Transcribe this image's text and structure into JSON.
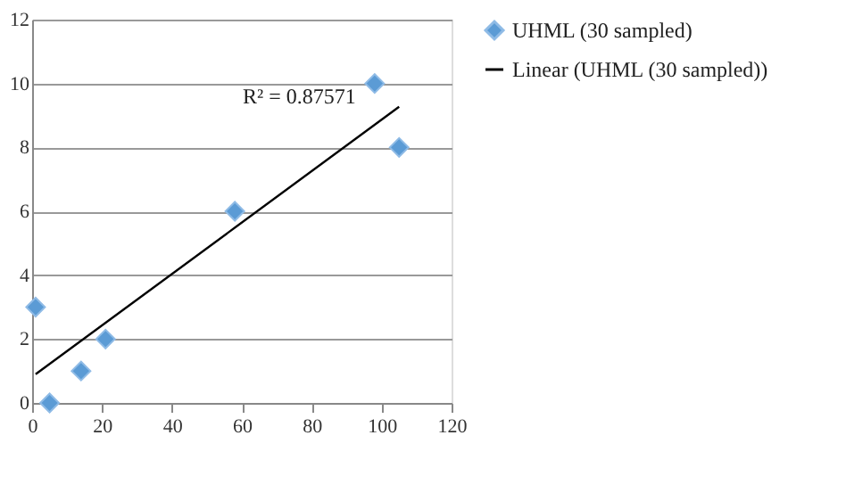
{
  "chart_data": {
    "type": "scatter",
    "x": [
      1,
      5,
      14,
      21,
      58,
      98,
      105
    ],
    "series": [
      {
        "name": "UHML (30 sampled)",
        "color": "#5b9bd5",
        "values": [
          3,
          0,
          1,
          2,
          6,
          10,
          8
        ],
        "marker": "diamond"
      },
      {
        "name": "Linear (UHML (30 sampled))",
        "type": "line",
        "color": "#000000",
        "x": [
          1,
          105
        ],
        "values": [
          0.9,
          9.27
        ],
        "line_style": "solid"
      }
    ],
    "annotations": [
      "R² = 0.87571"
    ],
    "xlim": [
      0,
      120
    ],
    "xticks": [
      0,
      20,
      40,
      60,
      80,
      100,
      120
    ],
    "ylim": [
      0,
      12
    ],
    "yticks": [
      0,
      2,
      4,
      6,
      8,
      10,
      12
    ],
    "grid": "y",
    "legend": "right"
  }
}
